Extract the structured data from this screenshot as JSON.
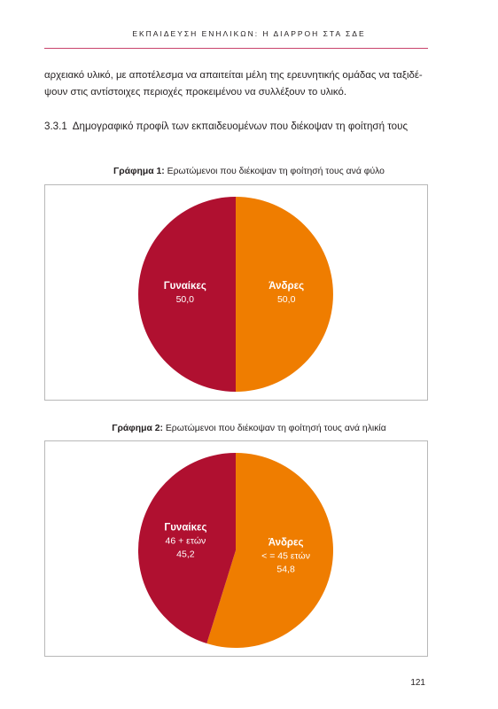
{
  "header": {
    "running_title": "ΕΚΠΑΙΔΕΥΣΗ ΕΝΗΛΙΚΩΝ: Η ΔΙΑΡΡΟΗ ΣΤΑ ΣΔΕ"
  },
  "body_text": {
    "line1": "αρχειακό υλικό, με αποτέλεσμα να απαιτείται μέλη της ερευνητικής ομάδας να ταξιδέ-",
    "line2": "ψουν στις αντίστοιχες περιοχές προκειμένου να συλλέξουν το υλικό."
  },
  "section": {
    "number": "3.3.1",
    "title": "Δημογραφικό προφίλ των εκπαιδευομένων που διέκοψαν τη φοίτησή τους"
  },
  "figures": [
    {
      "caption_label": "Γράφημα 1:",
      "caption_text": "Ερωτώμενοι που διέκοψαν τη φοίτησή τους ανά φύλο"
    },
    {
      "caption_label": "Γράφημα 2:",
      "caption_text": "Ερωτώμενοι που διέκοψαν τη φοίτησή τους ανά ηλικία"
    }
  ],
  "colors": {
    "crimson": "#b01030",
    "orange": "#ef7d00",
    "rule": "#c9436b"
  },
  "chart_data": [
    {
      "type": "pie",
      "title": "Γράφημα 1: Ερωτώμενοι που διέκοψαν τη φοίτησή τους ανά φύλο",
      "slices": [
        {
          "name": "Άνδρες",
          "sublabel": "",
          "value": 50.0,
          "value_label": "50,0",
          "color": "#ef7d00"
        },
        {
          "name": "Γυναίκες",
          "sublabel": "",
          "value": 50.0,
          "value_label": "50,0",
          "color": "#b01030"
        }
      ]
    },
    {
      "type": "pie",
      "title": "Γράφημα 2: Ερωτώμενοι που διέκοψαν τη φοίτησή τους ανά ηλικία",
      "slices": [
        {
          "name": "Άνδρες",
          "sublabel": "< = 45 ετών",
          "value": 54.8,
          "value_label": "54,8",
          "color": "#ef7d00"
        },
        {
          "name": "Γυναίκες",
          "sublabel": "46 + ετών",
          "value": 45.2,
          "value_label": "45,2",
          "color": "#b01030"
        }
      ]
    }
  ],
  "footer": {
    "page_number": "121"
  }
}
